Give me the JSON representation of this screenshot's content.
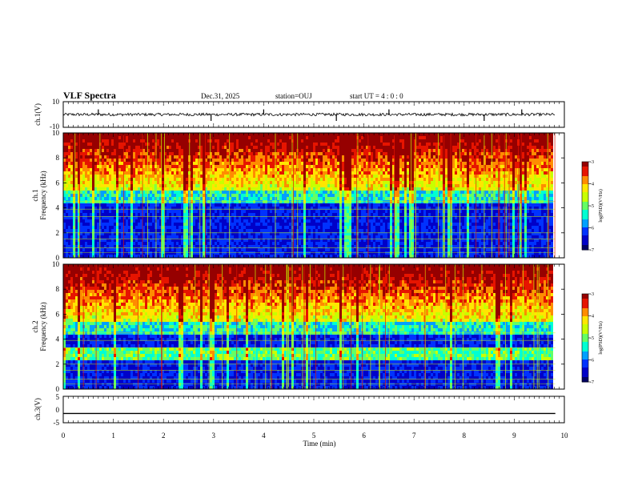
{
  "header": {
    "title": "VLF Spectra",
    "date": "Dec.31, 2025",
    "station": "station=OUJ",
    "start_ut": "start  UT =   4 : 0  : 0"
  },
  "colors": {
    "spectrum_scale": [
      "#000064",
      "#0000c8",
      "#0032ff",
      "#00a0ff",
      "#00ffd2",
      "#64ff64",
      "#c8ff00",
      "#ffe600",
      "#ff8c00",
      "#e61400",
      "#960000"
    ]
  },
  "chart_data": [
    {
      "name": "ch1-waveform",
      "type": "line",
      "ylabel": "ch.1(V)",
      "ylim": [
        -10,
        10
      ],
      "yticks": [
        "10",
        "-10"
      ],
      "baseline": 0,
      "spike_times_min": [
        0.7,
        2.95,
        4.0,
        5.45,
        6.5,
        8.4,
        9.15
      ]
    },
    {
      "name": "ch1-spectrogram",
      "type": "heatmap",
      "ylabel": "ch.1\nFrequency (kHz)",
      "ylim": [
        0,
        10
      ],
      "yticks": [
        "0",
        "2",
        "4",
        "6",
        "8",
        "10"
      ],
      "colorbar": {
        "label": "log(PSD)(V²/Hz)",
        "range": [
          -7,
          -3
        ],
        "ticks": [
          "-3",
          "-4",
          "-5",
          "-6",
          "-7"
        ]
      },
      "noise_floor_khz": 5.5
    },
    {
      "name": "ch2-spectrogram",
      "type": "heatmap",
      "ylabel": "ch.2\nFrequency (kHz)",
      "ylim": [
        0,
        10
      ],
      "yticks": [
        "0",
        "2",
        "4",
        "6",
        "8",
        "10"
      ],
      "colorbar": {
        "label": "log(PSD)(V²/Hz)",
        "range": [
          -7,
          -3
        ],
        "ticks": [
          "-3",
          "-4",
          "-5",
          "-6",
          "-7"
        ]
      },
      "band_khz": [
        2.5,
        3.5
      ],
      "noise_floor_khz": 5.5
    },
    {
      "name": "ch3-waveform",
      "type": "line",
      "ylabel": "ch.3(V)",
      "ylim": [
        -5,
        5
      ],
      "yticks": [
        "5",
        "0",
        "-5"
      ],
      "baseline": -1.5
    }
  ],
  "xaxis": {
    "label": "Time (min)",
    "range": [
      0,
      10
    ],
    "ticks": [
      "0",
      "1",
      "2",
      "3",
      "4",
      "5",
      "6",
      "7",
      "8",
      "9",
      "10"
    ],
    "data_end_min": 9.82
  }
}
